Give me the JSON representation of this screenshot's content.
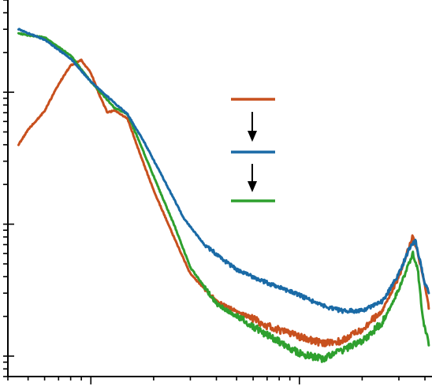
{
  "chart_data": {
    "type": "line",
    "title": "",
    "xlabel": "",
    "ylabel": "",
    "x_scale": "log",
    "y_scale": "log",
    "tick_labels_shown": false,
    "legend": {
      "placement": "top-right",
      "order": [
        "orange",
        "blue",
        "green"
      ],
      "arrows_between_entries": true
    },
    "series": [
      {
        "color": "#c8501e",
        "points": [
          [
            0.045,
            4.0
          ],
          [
            0.05,
            5.2
          ],
          [
            0.06,
            7.2
          ],
          [
            0.07,
            11.5
          ],
          [
            0.08,
            16.0
          ],
          [
            0.09,
            17.5
          ],
          [
            0.1,
            14.0
          ],
          [
            0.11,
            9.5
          ],
          [
            0.12,
            7.0
          ],
          [
            0.13,
            7.3
          ],
          [
            0.15,
            6.3
          ],
          [
            0.17,
            3.6
          ],
          [
            0.2,
            1.8
          ],
          [
            0.25,
            0.8
          ],
          [
            0.3,
            0.42
          ],
          [
            0.4,
            0.26
          ],
          [
            0.5,
            0.22
          ],
          [
            0.7,
            0.17
          ],
          [
            1.0,
            0.14
          ],
          [
            1.3,
            0.125
          ],
          [
            1.6,
            0.13
          ],
          [
            2.0,
            0.16
          ],
          [
            2.5,
            0.22
          ],
          [
            3.0,
            0.4
          ],
          [
            3.3,
            0.62
          ],
          [
            3.5,
            0.82
          ],
          [
            3.7,
            0.6
          ],
          [
            4.0,
            0.35
          ],
          [
            4.2,
            0.22
          ]
        ]
      },
      {
        "color": "#1a6aa6",
        "points": [
          [
            0.045,
            30.0
          ],
          [
            0.05,
            28.0
          ],
          [
            0.06,
            25.0
          ],
          [
            0.08,
            18.0
          ],
          [
            0.1,
            12.0
          ],
          [
            0.13,
            8.3
          ],
          [
            0.15,
            6.8
          ],
          [
            0.18,
            4.2
          ],
          [
            0.22,
            2.3
          ],
          [
            0.28,
            1.1
          ],
          [
            0.35,
            0.7
          ],
          [
            0.5,
            0.45
          ],
          [
            0.7,
            0.36
          ],
          [
            1.0,
            0.29
          ],
          [
            1.3,
            0.24
          ],
          [
            1.6,
            0.22
          ],
          [
            2.0,
            0.22
          ],
          [
            2.5,
            0.26
          ],
          [
            3.0,
            0.42
          ],
          [
            3.4,
            0.68
          ],
          [
            3.6,
            0.75
          ],
          [
            3.8,
            0.52
          ],
          [
            4.0,
            0.35
          ],
          [
            4.2,
            0.3
          ]
        ]
      },
      {
        "color": "#2ea02e",
        "points": [
          [
            0.045,
            28.0
          ],
          [
            0.05,
            27.0
          ],
          [
            0.06,
            26.0
          ],
          [
            0.08,
            19.0
          ],
          [
            0.1,
            12.0
          ],
          [
            0.13,
            7.6
          ],
          [
            0.15,
            6.8
          ],
          [
            0.17,
            4.3
          ],
          [
            0.2,
            2.3
          ],
          [
            0.25,
            1.0
          ],
          [
            0.3,
            0.47
          ],
          [
            0.4,
            0.25
          ],
          [
            0.5,
            0.2
          ],
          [
            0.7,
            0.145
          ],
          [
            1.0,
            0.105
          ],
          [
            1.3,
            0.095
          ],
          [
            1.6,
            0.11
          ],
          [
            2.0,
            0.13
          ],
          [
            2.5,
            0.18
          ],
          [
            3.0,
            0.32
          ],
          [
            3.3,
            0.47
          ],
          [
            3.5,
            0.6
          ],
          [
            3.7,
            0.45
          ],
          [
            3.9,
            0.2
          ],
          [
            4.2,
            0.12
          ]
        ]
      }
    ]
  }
}
